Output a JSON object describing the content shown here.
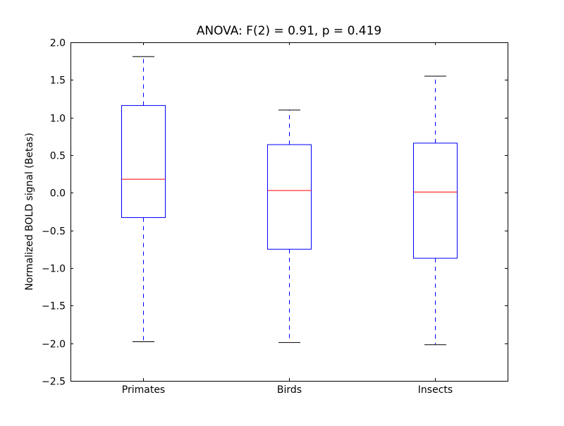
{
  "chart_data": {
    "type": "box",
    "title": "ANOVA: F(2) = 0.91, p = 0.419",
    "xlabel": "",
    "ylabel": "Normalized BOLD signal (Betas)",
    "ylim": [
      -2.5,
      2.0
    ],
    "yticks": [
      -2.5,
      -2.0,
      -1.5,
      -1.0,
      -0.5,
      0.0,
      0.5,
      1.0,
      1.5,
      2.0
    ],
    "ytick_labels": [
      "−2.5",
      "−2.0",
      "−1.5",
      "−1.0",
      "−0.5",
      "0.0",
      "0.5",
      "1.0",
      "1.5",
      "2.0"
    ],
    "grid": false,
    "categories": [
      "Primates",
      "Birds",
      "Insects"
    ],
    "boxes": [
      {
        "whisker_low": -1.98,
        "q1": -0.33,
        "median": 0.18,
        "q3": 1.16,
        "whisker_high": 1.81
      },
      {
        "whisker_low": -1.99,
        "q1": -0.75,
        "median": 0.03,
        "q3": 0.64,
        "whisker_high": 1.1
      },
      {
        "whisker_low": -2.02,
        "q1": -0.87,
        "median": 0.01,
        "q3": 0.66,
        "whisker_high": 1.55
      }
    ],
    "colors": {
      "box": "#0000ff",
      "median": "#ff0000",
      "cap": "#000000",
      "whisker": "#0000ff"
    }
  }
}
